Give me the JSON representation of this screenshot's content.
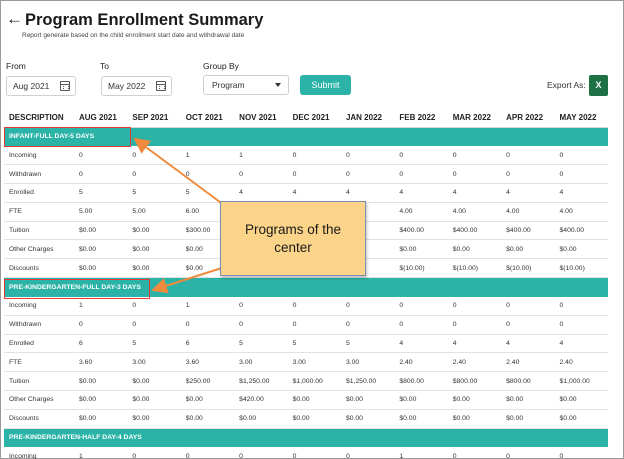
{
  "header": {
    "title": "Program Enrollment Summary",
    "subtitle": "Report generate based on the child enrollment start date and withdrawal date"
  },
  "filters": {
    "from_label": "From",
    "from_value": "Aug 2021",
    "to_label": "To",
    "to_value": "May 2022",
    "group_by_label": "Group By",
    "group_by_value": "Program",
    "submit_label": "Submit",
    "export_label": "Export As:",
    "excel_glyph": "X"
  },
  "table": {
    "columns": [
      "DESCRIPTION",
      "AUG 2021",
      "SEP 2021",
      "OCT 2021",
      "NOV 2021",
      "DEC 2021",
      "JAN 2022",
      "FEB 2022",
      "MAR 2022",
      "APR 2022",
      "MAY 2022"
    ],
    "groups": [
      {
        "name": "INFANT-FULL DAY-5 DAYS",
        "rows": [
          {
            "label": "Incoming",
            "values": [
              "0",
              "0",
              "1",
              "1",
              "0",
              "0",
              "0",
              "0",
              "0",
              "0"
            ]
          },
          {
            "label": "Withdrawn",
            "values": [
              "0",
              "0",
              "0",
              "0",
              "0",
              "0",
              "0",
              "0",
              "0",
              "0"
            ]
          },
          {
            "label": "Enrolled",
            "values": [
              "5",
              "5",
              "5",
              "4",
              "4",
              "4",
              "4",
              "4",
              "4",
              "4"
            ]
          },
          {
            "label": "FTE",
            "values": [
              "5.00",
              "5.00",
              "6.00",
              "",
              "",
              "",
              "4.00",
              "4.00",
              "4.00",
              "4.00"
            ]
          },
          {
            "label": "Tuition",
            "values": [
              "$0.00",
              "$0.00",
              "$300.00",
              "",
              "",
              "00",
              "$400.00",
              "$400.00",
              "$400.00",
              "$400.00"
            ]
          },
          {
            "label": "Other Charges",
            "values": [
              "$0.00",
              "$0.00",
              "$0.00",
              "",
              "",
              "",
              "$0.00",
              "$0.00",
              "$0.00",
              "$0.00"
            ]
          },
          {
            "label": "Discounts",
            "values": [
              "$0.00",
              "$0.00",
              "$0.00",
              "",
              "",
              "0)",
              "$(10.00)",
              "$(10.00)",
              "$(10.00)",
              "$(10.00)"
            ]
          }
        ]
      },
      {
        "name": "PRE-KINDERGARTEN-FULL DAY-3 DAYS",
        "rows": [
          {
            "label": "Incoming",
            "values": [
              "1",
              "0",
              "1",
              "0",
              "0",
              "0",
              "0",
              "0",
              "0",
              "0"
            ]
          },
          {
            "label": "Withdrawn",
            "values": [
              "0",
              "0",
              "0",
              "0",
              "0",
              "0",
              "0",
              "0",
              "0",
              "0"
            ]
          },
          {
            "label": "Enrolled",
            "values": [
              "6",
              "5",
              "6",
              "5",
              "5",
              "5",
              "4",
              "4",
              "4",
              "4"
            ]
          },
          {
            "label": "FTE",
            "values": [
              "3.60",
              "3.00",
              "3.60",
              "3.00",
              "3.00",
              "3.00",
              "2.40",
              "2.40",
              "2.40",
              "2.40"
            ]
          },
          {
            "label": "Tuition",
            "values": [
              "$0.00",
              "$0.00",
              "$250.00",
              "$1,250.00",
              "$1,000.00",
              "$1,250.00",
              "$800.00",
              "$800.00",
              "$800.00",
              "$1,000.00"
            ]
          },
          {
            "label": "Other Charges",
            "values": [
              "$0.00",
              "$0.00",
              "$0.00",
              "$420.00",
              "$0.00",
              "$0.00",
              "$0.00",
              "$0.00",
              "$0.00",
              "$0.00"
            ]
          },
          {
            "label": "Discounts",
            "values": [
              "$0.00",
              "$0.00",
              "$0.00",
              "$0.00",
              "$0.00",
              "$0.00",
              "$0.00",
              "$0.00",
              "$0.00",
              "$0.00"
            ]
          }
        ]
      },
      {
        "name": "PRE-KINDERGARTEN-HALF DAY-4 DAYS",
        "rows": [
          {
            "label": "Incoming",
            "values": [
              "1",
              "0",
              "0",
              "0",
              "0",
              "0",
              "1",
              "0",
              "0",
              "0"
            ]
          }
        ]
      }
    ]
  },
  "annotation": {
    "callout_line1": "Programs of the",
    "callout_line2": "center"
  },
  "colors": {
    "accent": "#2ab3a6",
    "highlight": "#e53935",
    "callout_fill": "#fbd489",
    "arrow": "#f08a3c",
    "excel": "#1e7145"
  }
}
